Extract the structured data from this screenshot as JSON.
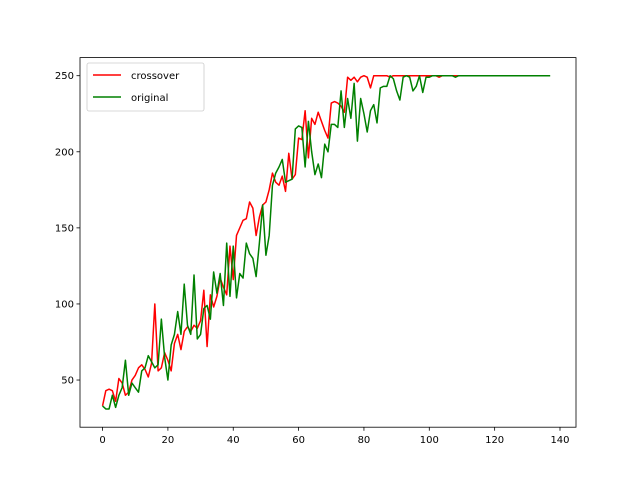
{
  "chart_data": {
    "type": "line",
    "title": "",
    "xlabel": "",
    "ylabel": "",
    "xlim": [
      -6.9,
      144.9
    ],
    "ylim": [
      19.0,
      261.9
    ],
    "x_ticks": [
      0,
      20,
      40,
      60,
      80,
      100,
      120,
      140
    ],
    "y_ticks": [
      50,
      100,
      150,
      200,
      250
    ],
    "grid": false,
    "legend": {
      "placement": "top-left"
    },
    "series": [
      {
        "name": "crossover",
        "color": "#ff0000",
        "x": [
          0,
          1,
          2,
          3,
          4,
          5,
          6,
          7,
          8,
          9,
          10,
          11,
          12,
          13,
          14,
          15,
          16,
          17,
          18,
          19,
          20,
          21,
          22,
          23,
          24,
          25,
          26,
          27,
          28,
          29,
          30,
          31,
          32,
          33,
          34,
          35,
          36,
          37,
          38,
          39,
          40,
          41,
          42,
          43,
          44,
          45,
          46,
          47,
          48,
          49,
          50,
          51,
          52,
          53,
          54,
          55,
          56,
          57,
          58,
          59,
          60,
          61,
          62,
          63,
          64,
          65,
          66,
          67,
          68,
          69,
          70,
          71,
          72,
          73,
          74,
          75,
          76,
          77,
          78,
          79,
          80,
          81,
          82,
          83,
          84,
          85,
          86,
          87,
          88,
          89,
          90,
          91,
          92,
          93,
          94,
          95,
          96,
          97,
          98,
          99,
          100,
          101,
          102,
          103,
          104,
          105,
          106,
          107,
          108,
          109,
          110,
          111,
          112,
          113,
          114,
          115,
          116,
          117,
          118,
          119,
          120,
          121,
          122,
          123,
          124,
          125,
          126,
          127,
          128,
          129,
          130
        ],
        "y": [
          33,
          43,
          44,
          43,
          36,
          51,
          48,
          40,
          42,
          50,
          53,
          58,
          60,
          57,
          52,
          61,
          100,
          56,
          58,
          68,
          63,
          56,
          74,
          80,
          70,
          82,
          85,
          82,
          86,
          84,
          89,
          109,
          72,
          106,
          98,
          105,
          117,
          111,
          106,
          138,
          116,
          145,
          150,
          155,
          156,
          167,
          163,
          145,
          157,
          165,
          167,
          175,
          186,
          180,
          178,
          184,
          174,
          199,
          182,
          185,
          209,
          208,
          227,
          196,
          222,
          218,
          226,
          220,
          214,
          209,
          232,
          233,
          232,
          230,
          226,
          249,
          247,
          249,
          246,
          249,
          250,
          249,
          242,
          250,
          250,
          250,
          250,
          250,
          249,
          250,
          250,
          250,
          250,
          250,
          250,
          250,
          250,
          250,
          250,
          250,
          250,
          250,
          250,
          249,
          250,
          250,
          250,
          250,
          250,
          250,
          250,
          250,
          250,
          250,
          250,
          250,
          250,
          250,
          250,
          250,
          250,
          250,
          250,
          250,
          250,
          250,
          250,
          250,
          250,
          250,
          250
        ]
      },
      {
        "name": "original",
        "color": "#008000",
        "x": [
          0,
          1,
          2,
          3,
          4,
          5,
          6,
          7,
          8,
          9,
          10,
          11,
          12,
          13,
          14,
          15,
          16,
          17,
          18,
          19,
          20,
          21,
          22,
          23,
          24,
          25,
          26,
          27,
          28,
          29,
          30,
          31,
          32,
          33,
          34,
          35,
          36,
          37,
          38,
          39,
          40,
          41,
          42,
          43,
          44,
          45,
          46,
          47,
          48,
          49,
          50,
          51,
          52,
          53,
          54,
          55,
          56,
          57,
          58,
          59,
          60,
          61,
          62,
          63,
          64,
          65,
          66,
          67,
          68,
          69,
          70,
          71,
          72,
          73,
          74,
          75,
          76,
          77,
          78,
          79,
          80,
          81,
          82,
          83,
          84,
          85,
          86,
          87,
          88,
          89,
          90,
          91,
          92,
          93,
          94,
          95,
          96,
          97,
          98,
          99,
          100,
          101,
          102,
          103,
          104,
          105,
          106,
          107,
          108,
          109,
          110,
          111,
          112,
          113,
          114,
          115,
          116,
          117,
          118,
          119,
          120,
          121,
          122,
          123,
          124,
          125,
          126,
          127,
          128,
          129,
          130,
          131,
          132,
          133,
          134,
          135,
          136,
          137
        ],
        "y": [
          33,
          31,
          31,
          40,
          32,
          40,
          45,
          63,
          40,
          48,
          45,
          42,
          56,
          58,
          66,
          62,
          58,
          60,
          90,
          65,
          50,
          73,
          80,
          95,
          80,
          113,
          86,
          80,
          119,
          77,
          80,
          97,
          99,
          90,
          121,
          107,
          120,
          99,
          140,
          105,
          138,
          104,
          120,
          117,
          140,
          133,
          130,
          118,
          140,
          165,
          132,
          145,
          178,
          186,
          190,
          195,
          180,
          181,
          182,
          215,
          217,
          216,
          190,
          220,
          200,
          185,
          192,
          183,
          205,
          200,
          218,
          218,
          216,
          240,
          216,
          235,
          222,
          245,
          207,
          235,
          225,
          213,
          227,
          231,
          219,
          242,
          243,
          243,
          250,
          248,
          240,
          234,
          249,
          250,
          249,
          240,
          243,
          250,
          239,
          249,
          249,
          250,
          250,
          250,
          250,
          250,
          250,
          250,
          249,
          250,
          250,
          250,
          250,
          250,
          250,
          250,
          250,
          250,
          250,
          250,
          250,
          250,
          250,
          250,
          250,
          250,
          250,
          250,
          250,
          250,
          250,
          250,
          250,
          250,
          250,
          250,
          250,
          250
        ]
      }
    ]
  }
}
